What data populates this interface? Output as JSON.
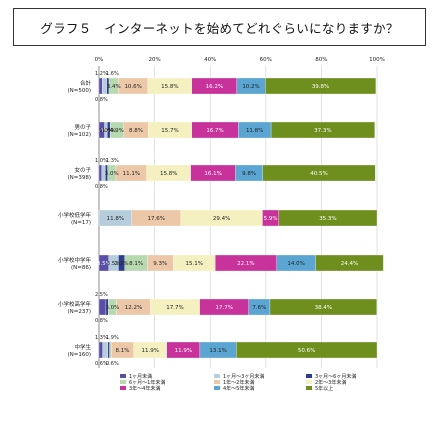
{
  "title": "グラフ５　インターネットを始めてどれぐらいになりますか？",
  "colors": [
    "#5a4ea8",
    "#b6cddc",
    "#2e3e8c",
    "#b7d9b0",
    "#ecc8a8",
    "#f5f0c0",
    "#c8329b",
    "#5aa5d1",
    "#6e8f1e",
    "#cfe5f2"
  ],
  "chart_data": {
    "type": "bar",
    "orientation": "horizontal",
    "stacked": true,
    "title": "グラフ５　インターネットを始めてどれぐらいになりますか？",
    "xlim": [
      0,
      100
    ],
    "x_ticks": [
      "0%",
      "20%",
      "40%",
      "60%",
      "80%",
      "100%"
    ],
    "categories": [
      [
        "合計",
        "(N=500)"
      ],
      [
        "男の子",
        "(N=102)"
      ],
      [
        "女の子",
        "(N=398)"
      ],
      [
        "小学校低学年",
        "(N=17)"
      ],
      [
        "小学校中学年",
        "(N=86)"
      ],
      [
        "小学校高学年",
        "(N=237)"
      ],
      [
        "中学生",
        "(N=160)"
      ]
    ],
    "series": [
      {
        "name": "1ヶ月未満",
        "values": [
          1.2,
          2.0,
          1.0,
          0.0,
          3.5,
          2.5,
          1.3
        ]
      },
      {
        "name": "1ヶ月～3ヶ月未満",
        "values": [
          1.6,
          1.0,
          1.3,
          11.8,
          3.5,
          0.0,
          1.9
        ]
      },
      {
        "name": "3ヶ月～6ヶ月未満",
        "values": [
          0.8,
          1.0,
          0.8,
          0.0,
          2.3,
          0.8,
          0.6
        ]
      },
      {
        "name": "6ヶ月～1年未満",
        "values": [
          3.4,
          4.9,
          3.0,
          0.0,
          8.1,
          3.0,
          0.6
        ]
      },
      {
        "name": "1年～2年未満",
        "values": [
          10.6,
          8.8,
          11.1,
          17.6,
          9.3,
          12.2,
          8.1
        ]
      },
      {
        "name": "2年～3年未満",
        "values": [
          15.8,
          15.7,
          15.8,
          29.4,
          15.1,
          17.7,
          11.9
        ]
      },
      {
        "name": "3年～4年未満",
        "values": [
          16.2,
          16.7,
          16.1,
          5.9,
          22.1,
          17.7,
          11.9
        ]
      },
      {
        "name": "4年～5年未満",
        "values": [
          10.2,
          11.8,
          9.8,
          0.0,
          14.0,
          7.6,
          13.1
        ]
      },
      {
        "name": "5年以上",
        "values": [
          39.8,
          37.3,
          40.5,
          35.3,
          24.4,
          38.4,
          50.6
        ]
      }
    ],
    "labels": [
      [
        {
          "s": 0,
          "text": "1.2%",
          "pos": "above"
        },
        {
          "s": 1,
          "text": "1.6%",
          "pos": "above"
        },
        {
          "s": 2,
          "text": "0.8%",
          "pos": "below"
        },
        {
          "s": 3,
          "text": "3.4%"
        },
        {
          "s": 4,
          "text": "10.6%"
        },
        {
          "s": 5,
          "text": "15.8%"
        },
        {
          "s": 6,
          "text": "16.2%"
        },
        {
          "s": 7,
          "text": "10.2%"
        },
        {
          "s": 8,
          "text": "39.8%"
        }
      ],
      [
        {
          "s": 0,
          "text": "2.0%"
        },
        {
          "s": 1,
          "text": "1.0%"
        },
        {
          "s": 2,
          "text": "1.0%"
        },
        {
          "s": 3,
          "text": "4.9%"
        },
        {
          "s": 4,
          "text": "8.8%"
        },
        {
          "s": 5,
          "text": "15.7%"
        },
        {
          "s": 6,
          "text": "16.7%"
        },
        {
          "s": 7,
          "text": "11.8%"
        },
        {
          "s": 8,
          "text": "37.3%"
        }
      ],
      [
        {
          "s": 0,
          "text": "1.0%",
          "pos": "above"
        },
        {
          "s": 1,
          "text": "1.3%",
          "pos": "above"
        },
        {
          "s": 2,
          "text": "0.8%",
          "pos": "below"
        },
        {
          "s": 3,
          "text": "3.0%"
        },
        {
          "s": 4,
          "text": "11.1%"
        },
        {
          "s": 5,
          "text": "15.8%"
        },
        {
          "s": 6,
          "text": "16.1%"
        },
        {
          "s": 7,
          "text": "9.8%"
        },
        {
          "s": 8,
          "text": "40.5%"
        }
      ],
      [
        {
          "s": 1,
          "text": "11.8%"
        },
        {
          "s": 4,
          "text": "17.6%"
        },
        {
          "s": 5,
          "text": "29.4%"
        },
        {
          "s": 6,
          "text": "5.9%"
        },
        {
          "s": 8,
          "text": "35.3%"
        }
      ],
      [
        {
          "s": 0,
          "text": "3.5%"
        },
        {
          "s": 1,
          "text": "3.5%"
        },
        {
          "s": 2,
          "text": "2.3%"
        },
        {
          "s": 3,
          "text": "8.1%"
        },
        {
          "s": 4,
          "text": "9.3%"
        },
        {
          "s": 5,
          "text": "15.1%"
        },
        {
          "s": 6,
          "text": "22.1%"
        },
        {
          "s": 7,
          "text": "14.0%"
        },
        {
          "s": 8,
          "text": "24.4%"
        }
      ],
      [
        {
          "s": 0,
          "text": "2.5%",
          "pos": "above"
        },
        {
          "s": 2,
          "text": "0.8%",
          "pos": "below"
        },
        {
          "s": 3,
          "text": "3.0%"
        },
        {
          "s": 4,
          "text": "12.2%"
        },
        {
          "s": 5,
          "text": "17.7%"
        },
        {
          "s": 6,
          "text": "17.7%"
        },
        {
          "s": 7,
          "text": "7.6%"
        },
        {
          "s": 8,
          "text": "38.4%"
        }
      ],
      [
        {
          "s": 0,
          "text": "1.3%",
          "pos": "above"
        },
        {
          "s": 1,
          "text": "1.9%",
          "pos": "above"
        },
        {
          "s": 2,
          "text": "0.6%",
          "pos": "below"
        },
        {
          "s": 3,
          "text": "0.6%",
          "pos": "below"
        },
        {
          "s": 4,
          "text": "8.1%"
        },
        {
          "s": 5,
          "text": "11.9%"
        },
        {
          "s": 6,
          "text": "11.9%"
        },
        {
          "s": 7,
          "text": "13.1%"
        },
        {
          "s": 8,
          "text": "50.6%"
        }
      ]
    ],
    "legend": {
      "placement": "bottom",
      "items": [
        "1ヶ月未満",
        "1ヶ月～3ヶ月未満",
        "3ヶ月～6ヶ月未満",
        "6ヶ月～1年未満",
        "1年～2年未満",
        "2年～3年未満",
        "3年～4年未満",
        "4年～5年未満",
        "5年以上"
      ]
    }
  }
}
